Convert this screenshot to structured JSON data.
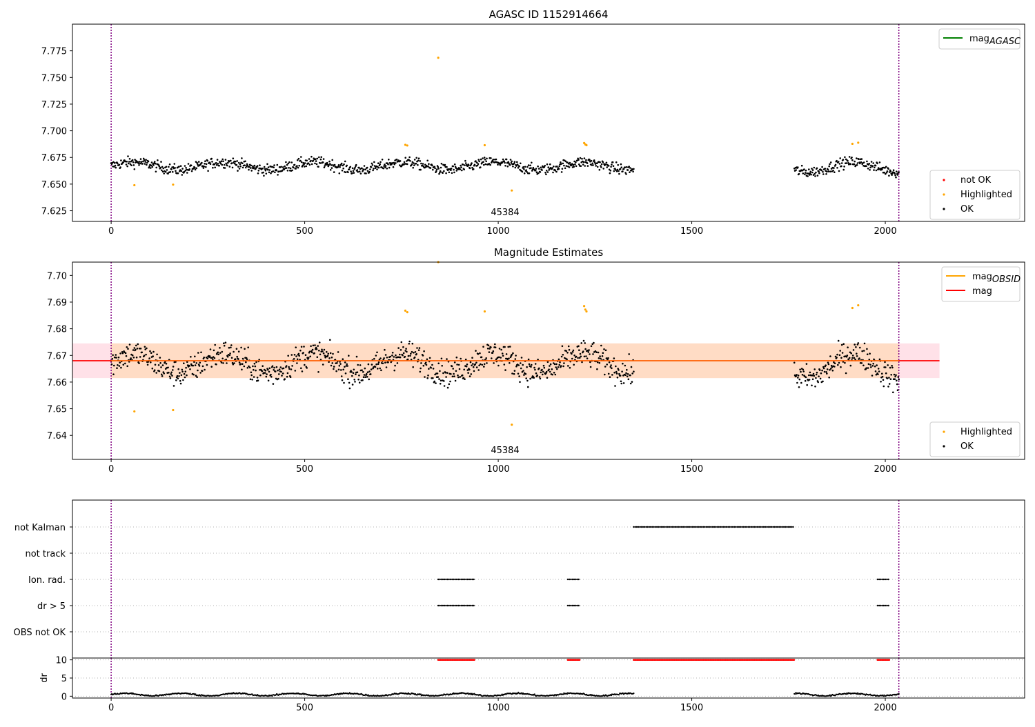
{
  "chart_data": [
    {
      "type": "scatter",
      "title": "AGASC ID 1152914664",
      "xlim": [
        -100,
        2360
      ],
      "ylim": [
        7.615,
        7.8
      ],
      "xticks": [
        0,
        500,
        1000,
        1500,
        2000
      ],
      "yticks": [
        7.625,
        7.65,
        7.675,
        7.7,
        7.725,
        7.75,
        7.775
      ],
      "annotation": "45384",
      "vlines": [
        0,
        2035
      ],
      "legend_upper": [
        {
          "label": "mag",
          "sub": "AGASC",
          "color": "#008000",
          "kind": "line"
        }
      ],
      "legend_lower": [
        {
          "label": "not OK",
          "color": "#ff0000",
          "kind": "dot"
        },
        {
          "label": "Highlighted",
          "color": "#ffa500",
          "kind": "dot"
        },
        {
          "label": "OK",
          "color": "#000000",
          "kind": "dot"
        }
      ],
      "ok_segments": [
        {
          "x": [
            0,
            1350
          ],
          "mean": 7.667,
          "amp": 0.006,
          "noise": 0.005
        },
        {
          "x": [
            1765,
            2035
          ],
          "mean": 7.666,
          "amp": 0.008,
          "noise": 0.005
        }
      ],
      "highlighted": [
        {
          "x": 60,
          "y": 7.649
        },
        {
          "x": 160,
          "y": 7.6495
        },
        {
          "x": 760,
          "y": 7.6868
        },
        {
          "x": 765,
          "y": 7.6862
        },
        {
          "x": 845,
          "y": 7.7685
        },
        {
          "x": 965,
          "y": 7.6865
        },
        {
          "x": 1035,
          "y": 7.644
        },
        {
          "x": 1222,
          "y": 7.6885
        },
        {
          "x": 1225,
          "y": 7.6872
        },
        {
          "x": 1228,
          "y": 7.6865
        },
        {
          "x": 1915,
          "y": 7.6878
        },
        {
          "x": 1930,
          "y": 7.6888
        }
      ],
      "not_ok": []
    },
    {
      "type": "scatter",
      "title": "Magnitude Estimates",
      "xlim": [
        -100,
        2360
      ],
      "ylim": [
        7.631,
        7.705
      ],
      "xticks": [
        0,
        500,
        1000,
        1500,
        2000
      ],
      "yticks": [
        7.64,
        7.65,
        7.66,
        7.67,
        7.68,
        7.69,
        7.7
      ],
      "annotation": "45384",
      "vlines": [
        0,
        2035
      ],
      "mag": 7.668,
      "mag_band": [
        7.6615,
        7.6745
      ],
      "mag_band_x": [
        -100,
        2140
      ],
      "obsid_band_x": [
        0,
        2035
      ],
      "legend_upper": [
        {
          "label": "mag",
          "sub": "OBSID",
          "color": "#ffa500",
          "kind": "line"
        },
        {
          "label": "mag",
          "sub": "",
          "color": "#ff0000",
          "kind": "line"
        }
      ],
      "legend_lower": [
        {
          "label": "Highlighted",
          "color": "#ffa500",
          "kind": "dot"
        },
        {
          "label": "OK",
          "color": "#000000",
          "kind": "dot"
        }
      ],
      "ok_segments": [
        {
          "x": [
            0,
            1350
          ],
          "mean": 7.667,
          "amp": 0.006,
          "noise": 0.005
        },
        {
          "x": [
            1765,
            2035
          ],
          "mean": 7.666,
          "amp": 0.008,
          "noise": 0.005
        }
      ],
      "highlighted": [
        {
          "x": 60,
          "y": 7.649
        },
        {
          "x": 160,
          "y": 7.6495
        },
        {
          "x": 760,
          "y": 7.6868
        },
        {
          "x": 765,
          "y": 7.6862
        },
        {
          "x": 845,
          "y": 7.705
        },
        {
          "x": 965,
          "y": 7.6865
        },
        {
          "x": 1035,
          "y": 7.644
        },
        {
          "x": 1222,
          "y": 7.6885
        },
        {
          "x": 1225,
          "y": 7.6872
        },
        {
          "x": 1228,
          "y": 7.6865
        },
        {
          "x": 1915,
          "y": 7.6878
        },
        {
          "x": 1930,
          "y": 7.6888
        }
      ]
    },
    {
      "type": "scatter",
      "xlim": [
        -100,
        2360
      ],
      "vlines": [
        0,
        2035
      ],
      "flag_labels": [
        "not Kalman",
        "not track",
        "Ion. rad.",
        "dr > 5",
        "OBS not OK"
      ],
      "flag_ranges": {
        "not Kalman": [
          [
            1350,
            1765
          ]
        ],
        "not track": [],
        "Ion. rad.": [
          [
            845,
            940
          ],
          [
            1180,
            1210
          ],
          [
            1980,
            2010
          ]
        ],
        "dr > 5": [
          [
            845,
            940
          ],
          [
            1180,
            1210
          ],
          [
            1980,
            2010
          ]
        ],
        "OBS not OK": []
      }
    },
    {
      "type": "scatter",
      "ylabel": "dr",
      "xlim": [
        -100,
        2360
      ],
      "ylim": [
        -0.5,
        10.5
      ],
      "xticks": [
        0,
        500,
        1000,
        1500,
        2000
      ],
      "yticks": [
        0,
        5,
        10
      ],
      "vlines": [
        0,
        2035
      ],
      "dr_ok_ranges": [
        [
          0,
          1350
        ],
        [
          1765,
          2035
        ]
      ],
      "dr_capped_value": 10,
      "dr_capped_ranges": [
        [
          845,
          940
        ],
        [
          1180,
          1210
        ],
        [
          1350,
          1765
        ],
        [
          1980,
          2010
        ]
      ]
    }
  ]
}
